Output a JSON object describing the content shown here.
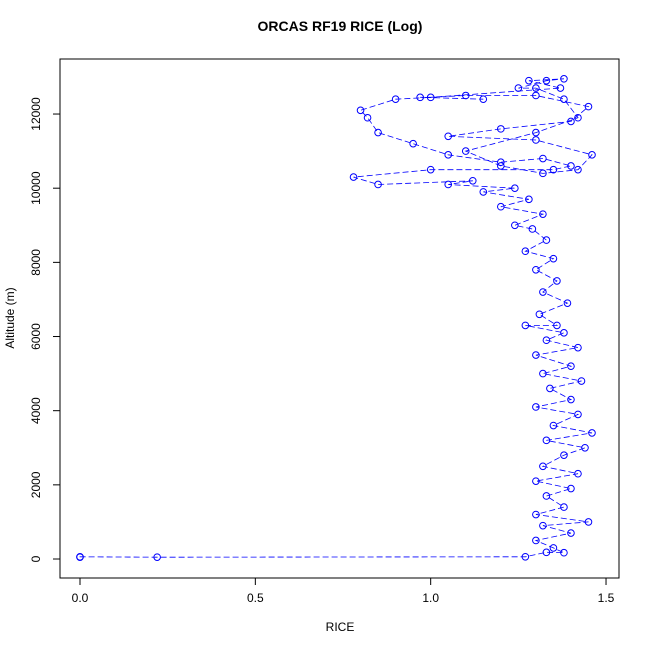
{
  "chart_data": {
    "type": "scatter",
    "title": "ORCAS RF19 RICE (Log)",
    "x_label": "RICE",
    "y_label": "Altitude (m)",
    "color": "#0000ff",
    "x": [
      0.0,
      0.0,
      0.22,
      1.27,
      1.33,
      1.38,
      1.35,
      1.3,
      1.4,
      1.32,
      1.45,
      1.3,
      1.38,
      1.33,
      1.4,
      1.3,
      1.42,
      1.32,
      1.38,
      1.44,
      1.33,
      1.46,
      1.35,
      1.42,
      1.3,
      1.4,
      1.34,
      1.43,
      1.32,
      1.4,
      1.3,
      1.42,
      1.33,
      1.38,
      1.27,
      1.36,
      1.31,
      1.39,
      1.32,
      1.36,
      1.3,
      1.35,
      1.27,
      1.33,
      1.29,
      1.24,
      1.32,
      1.2,
      1.28,
      1.15,
      1.24,
      1.05,
      1.12,
      0.85,
      0.78,
      1.0,
      1.35,
      1.4,
      1.32,
      1.2,
      1.05,
      0.95,
      0.85,
      0.82,
      0.8,
      0.9,
      1.1,
      1.3,
      1.45,
      1.4,
      1.2,
      1.05,
      1.3,
      1.46,
      1.42,
      1.32,
      1.2,
      1.1,
      1.3,
      1.42,
      1.38,
      1.3,
      1.25,
      1.33,
      1.38,
      1.28,
      1.37,
      1.0,
      0.97,
      1.15
    ],
    "values": [
      50,
      60,
      50,
      60,
      180,
      170,
      300,
      500,
      700,
      900,
      1000,
      1200,
      1400,
      1700,
      1900,
      2100,
      2300,
      2500,
      2800,
      3000,
      3200,
      3400,
      3600,
      3900,
      4100,
      4300,
      4600,
      4800,
      5000,
      5200,
      5500,
      5700,
      5900,
      6100,
      6300,
      6300,
      6600,
      6900,
      7200,
      7500,
      7800,
      8100,
      8300,
      8600,
      8900,
      9000,
      9300,
      9500,
      9700,
      9900,
      10000,
      10100,
      10200,
      10100,
      10300,
      10500,
      10500,
      10600,
      10800,
      10700,
      10900,
      11200,
      11500,
      11900,
      12100,
      12400,
      12500,
      12500,
      12200,
      11800,
      11600,
      11400,
      11300,
      10900,
      10500,
      10400,
      10600,
      11000,
      11500,
      11900,
      12400,
      12700,
      12700,
      12900,
      12950,
      12900,
      12700,
      12450,
      12450,
      12400
    ],
    "xlim": [
      -0.057,
      1.537
    ],
    "ylim": [
      -512,
      13484
    ],
    "xticks": [
      {
        "value": 0,
        "label": "0.0"
      },
      0.5,
      {
        "value": 1,
        "label": "1.0"
      },
      1.5
    ],
    "yticks": [
      0,
      2000,
      4000,
      6000,
      8000,
      10000,
      12000
    ]
  }
}
